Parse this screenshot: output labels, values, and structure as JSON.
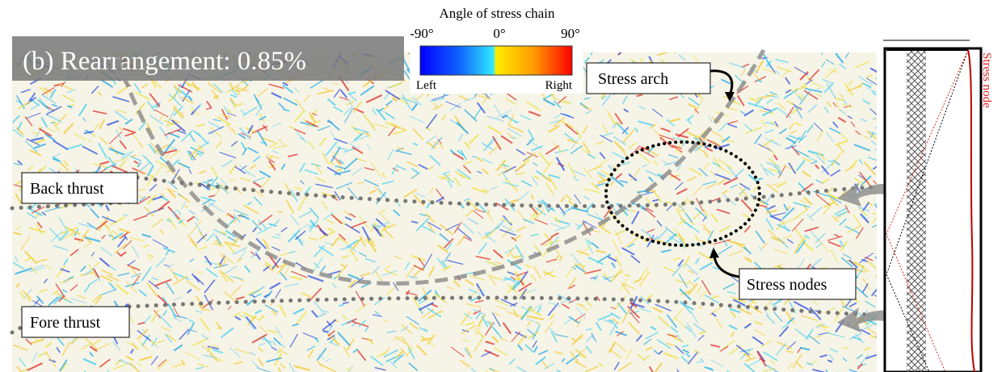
{
  "panel_label": "(b) Rearrangement: 0.85%",
  "colorbar": {
    "title": "Angle of stress chain",
    "ticks": [
      "-90°",
      "0°",
      "90°"
    ],
    "left_label": "Left",
    "right_label": "Right"
  },
  "annotations": {
    "stress_arch": "Stress arch",
    "back_thrust": "Back thrust",
    "stress_nodes": "Stress nodes",
    "fore_thrust": "Fore thrust"
  },
  "side_panel": {
    "legend": "Stress node"
  }
}
